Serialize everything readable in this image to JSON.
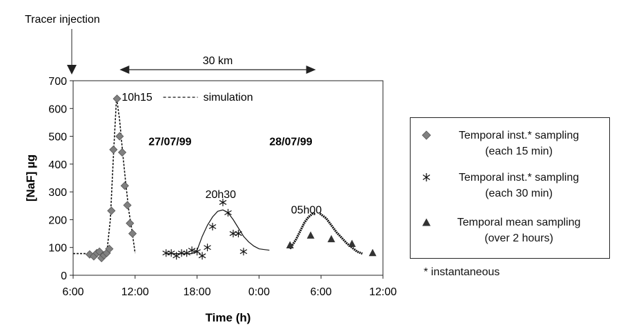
{
  "chart_data": {
    "type": "scatter",
    "ylabel": "[NaF] µg",
    "xlabel": "Time (h)",
    "xlim_hours": [
      6,
      36
    ],
    "ylim": [
      0,
      700
    ],
    "y_ticks": [
      0,
      100,
      200,
      300,
      400,
      500,
      600,
      700
    ],
    "x_ticks": [
      {
        "h": 6,
        "label": "6:00"
      },
      {
        "h": 12,
        "label": "12:00"
      },
      {
        "h": 18,
        "label": "18:00"
      },
      {
        "h": 24,
        "label": "0:00"
      },
      {
        "h": 30,
        "label": "6:00"
      },
      {
        "h": 36,
        "label": "12:00"
      }
    ],
    "series": [
      {
        "name": "Temporal inst.* sampling (each 15 min)",
        "marker": "diamond",
        "color": "#808080",
        "points": [
          [
            7.6,
            75
          ],
          [
            8.0,
            68
          ],
          [
            8.3,
            80
          ],
          [
            8.55,
            85
          ],
          [
            8.75,
            62
          ],
          [
            9.0,
            72
          ],
          [
            9.25,
            80
          ],
          [
            9.5,
            95
          ],
          [
            9.7,
            232
          ],
          [
            9.9,
            452
          ],
          [
            10.25,
            635
          ],
          [
            10.5,
            500
          ],
          [
            10.75,
            442
          ],
          [
            11.0,
            322
          ],
          [
            11.25,
            252
          ],
          [
            11.5,
            187
          ],
          [
            11.75,
            150
          ]
        ]
      },
      {
        "name": "Temporal inst.* sampling (each 30 min)",
        "marker": "asterisk",
        "color": "#111111",
        "points": [
          [
            15.0,
            80
          ],
          [
            15.5,
            80
          ],
          [
            16.0,
            70
          ],
          [
            16.5,
            80
          ],
          [
            17.0,
            80
          ],
          [
            17.5,
            90
          ],
          [
            18.0,
            85
          ],
          [
            18.5,
            70
          ],
          [
            19.0,
            100
          ],
          [
            19.5,
            175
          ],
          [
            20.5,
            262
          ],
          [
            21.0,
            225
          ],
          [
            21.5,
            150
          ],
          [
            22.0,
            150
          ],
          [
            22.5,
            85
          ]
        ]
      },
      {
        "name": "Temporal mean sampling (over 2 hours)",
        "marker": "triangle",
        "color": "#333333",
        "points": [
          [
            27.0,
            108
          ],
          [
            29.0,
            143
          ],
          [
            31.0,
            130
          ],
          [
            33.0,
            113
          ],
          [
            35.0,
            80
          ]
        ]
      }
    ],
    "simulations": [
      {
        "style": "dotted",
        "points": [
          [
            6.0,
            78
          ],
          [
            9.0,
            78
          ],
          [
            9.3,
            95
          ],
          [
            9.6,
            200
          ],
          [
            9.9,
            430
          ],
          [
            10.2,
            640
          ],
          [
            10.5,
            560
          ],
          [
            10.8,
            440
          ],
          [
            11.1,
            330
          ],
          [
            11.4,
            230
          ],
          [
            11.7,
            160
          ],
          [
            12.0,
            80
          ]
        ]
      },
      {
        "style": "solid",
        "points": [
          [
            15.0,
            78
          ],
          [
            17.5,
            78
          ],
          [
            18.0,
            90
          ],
          [
            18.5,
            140
          ],
          [
            19.0,
            180
          ],
          [
            19.5,
            210
          ],
          [
            20.0,
            230
          ],
          [
            20.5,
            235
          ],
          [
            21.0,
            225
          ],
          [
            21.5,
            200
          ],
          [
            22.0,
            170
          ],
          [
            22.5,
            140
          ],
          [
            23.0,
            120
          ],
          [
            23.5,
            105
          ],
          [
            24.0,
            95
          ],
          [
            25.0,
            90
          ]
        ]
      },
      {
        "style": "thick-dashed",
        "points": [
          [
            27.0,
            95
          ],
          [
            27.6,
            130
          ],
          [
            28.0,
            160
          ],
          [
            28.4,
            190
          ],
          [
            28.8,
            210
          ],
          [
            29.2,
            222
          ],
          [
            29.5,
            220
          ]
        ]
      },
      {
        "style": "thick-dashed",
        "points": [
          [
            29.9,
            222
          ],
          [
            30.5,
            205
          ],
          [
            31.0,
            180
          ],
          [
            31.5,
            155
          ],
          [
            32.0,
            135
          ],
          [
            32.5,
            115
          ],
          [
            33.0,
            100
          ],
          [
            33.5,
            85
          ],
          [
            34.0,
            78
          ]
        ]
      }
    ],
    "annotations": [
      {
        "text": "10h15",
        "h": 10.7,
        "y": 628,
        "weight": "normal"
      },
      {
        "text": "20h30",
        "h": 18.8,
        "y": 278,
        "weight": "normal"
      },
      {
        "text": "05h00",
        "h": 27.1,
        "y": 222,
        "weight": "normal"
      },
      {
        "text": "27/07/99",
        "h": 13.3,
        "y": 468,
        "weight": "bold"
      },
      {
        "text": "28/07/99",
        "h": 25.0,
        "y": 468,
        "weight": "bold"
      }
    ],
    "inline_legend": {
      "text": "simulation",
      "h": 18.6,
      "y": 628
    },
    "tracer_label": "Tracer injection",
    "distance": {
      "label": "30 km",
      "from_h": 10.5,
      "to_h": 29.5
    }
  },
  "legend": {
    "entries": [
      {
        "line1": "Temporal inst.* sampling",
        "line2": "(each 15 min)",
        "marker": "diamond"
      },
      {
        "line1": "Temporal inst.* sampling",
        "line2": "(each 30 min)",
        "marker": "asterisk"
      },
      {
        "line1": "Temporal mean sampling",
        "line2": "(over 2 hours)",
        "marker": "triangle"
      }
    ],
    "footnote": "* instantaneous"
  }
}
